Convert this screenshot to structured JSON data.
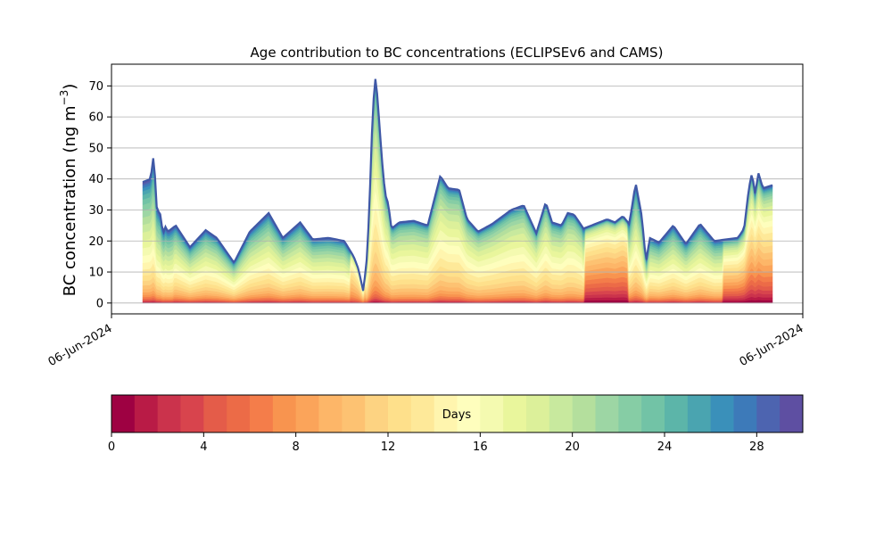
{
  "chart_data": [
    {
      "type": "area",
      "stacked": true,
      "title": "Age contribution to BC concentrations (ECLIPSEv6 and CAMS)",
      "ylabel_main": "BC concentration (ng m",
      "ylabel_exp": "−3",
      "ylabel_close": ")",
      "xlabel": "",
      "ylim": [
        -3.5,
        77
      ],
      "yticks": [
        0,
        10,
        20,
        30,
        40,
        50,
        60,
        70
      ],
      "grid": "horizontal",
      "xticks": [
        "06-Jun-2024",
        "06-Jun-2024"
      ],
      "x_hours": [
        0,
        1,
        2,
        3,
        4,
        5,
        6,
        7,
        8,
        9,
        10,
        11,
        12,
        13,
        14,
        15,
        16,
        17,
        18,
        19,
        20,
        21,
        22,
        23,
        24,
        25,
        26,
        27,
        28,
        29,
        30,
        31,
        32,
        33,
        34,
        35,
        36,
        37,
        38,
        39,
        40,
        41,
        42,
        43,
        44,
        45,
        46,
        47,
        48,
        49,
        50,
        51,
        52,
        53,
        54,
        55,
        56,
        57,
        58,
        59,
        60,
        61,
        62,
        63,
        64,
        65,
        66,
        67,
        68,
        69,
        70,
        71,
        72,
        73,
        74,
        75,
        76,
        77,
        78,
        79,
        80,
        81,
        82,
        83,
        84,
        85,
        86,
        87,
        88,
        89,
        90,
        91,
        92,
        93,
        94,
        95,
        96,
        97,
        98,
        99,
        100,
        101,
        102,
        103,
        104,
        105,
        106,
        107,
        108,
        109,
        110,
        111,
        112,
        113,
        114,
        115,
        116,
        117,
        118,
        119,
        120,
        121,
        122,
        123,
        124,
        125,
        126,
        127,
        128,
        129,
        130,
        131,
        132,
        133,
        134,
        135,
        136,
        137,
        138,
        139,
        140,
        141,
        142,
        143,
        144,
        145,
        146,
        147,
        148,
        149,
        150,
        151,
        152,
        153,
        154,
        155,
        156,
        157,
        158,
        159,
        160,
        161,
        162,
        163,
        164,
        165,
        166,
        167,
        168,
        169,
        170,
        171,
        172,
        173,
        174,
        175,
        176,
        177,
        178,
        179,
        180,
        181,
        182,
        183,
        184,
        185,
        186,
        187,
        188,
        189,
        190,
        191,
        192,
        193,
        194,
        195,
        196,
        197,
        198,
        199,
        200,
        201,
        202,
        203,
        204,
        205,
        206,
        207,
        208,
        209,
        210,
        211,
        212,
        213,
        214,
        215,
        216,
        217,
        218,
        219,
        220,
        221,
        222,
        223,
        224,
        225,
        226,
        227,
        228,
        229,
        230,
        231,
        232,
        233,
        234,
        235,
        236,
        237,
        238,
        239,
        240,
        241,
        242,
        243,
        244,
        245,
        246,
        247,
        248,
        249,
        250,
        251,
        252,
        253,
        254,
        255,
        256,
        257,
        258,
        259,
        260,
        261,
        262,
        263,
        264,
        265,
        266,
        267,
        268,
        269,
        270,
        271,
        272,
        273,
        274,
        275,
        276,
        277,
        278,
        279,
        280,
        281,
        282,
        283,
        284,
        285,
        286,
        287,
        288,
        289,
        290,
        291,
        292,
        293,
        294,
        295,
        296,
        297,
        298,
        299,
        300,
        301,
        302,
        303,
        304,
        305,
        306,
        307,
        308,
        309,
        310,
        311,
        312,
        313,
        314,
        315,
        316,
        317,
        318,
        319,
        320,
        321,
        322,
        323,
        324,
        325,
        326,
        327,
        328,
        329,
        330,
        331,
        332,
        333,
        334,
        335,
        336,
        337,
        338,
        339,
        340,
        341,
        342,
        343,
        344,
        345,
        346,
        347,
        348,
        349,
        350,
        351,
        352,
        353,
        354,
        355,
        356,
        357,
        358,
        359,
        360
      ],
      "total_nodes": [
        [
          0,
          39
        ],
        [
          5,
          40
        ],
        [
          7,
          48
        ],
        [
          9,
          30
        ],
        [
          11,
          29
        ],
        [
          13,
          22
        ],
        [
          14,
          25
        ],
        [
          16,
          23
        ],
        [
          21,
          25
        ],
        [
          30,
          18
        ],
        [
          40,
          23.5
        ],
        [
          47,
          21
        ],
        [
          58,
          13
        ],
        [
          68,
          23
        ],
        [
          80,
          29
        ],
        [
          89,
          21
        ],
        [
          100,
          26
        ],
        [
          108,
          20.5
        ],
        [
          118,
          21
        ],
        [
          128,
          20
        ],
        [
          134,
          15
        ],
        [
          137,
          11
        ],
        [
          140,
          4
        ],
        [
          142,
          12
        ],
        [
          143,
          20
        ],
        [
          145,
          45
        ],
        [
          146,
          62
        ],
        [
          148,
          73.5
        ],
        [
          150,
          60
        ],
        [
          152,
          46
        ],
        [
          154,
          35
        ],
        [
          156,
          32
        ],
        [
          158,
          24
        ],
        [
          163,
          26
        ],
        [
          172,
          26.5
        ],
        [
          181,
          25
        ],
        [
          189,
          41
        ],
        [
          194,
          37
        ],
        [
          201,
          36.5
        ],
        [
          206,
          27
        ],
        [
          213,
          23
        ],
        [
          222,
          25.5
        ],
        [
          234,
          30
        ],
        [
          242,
          31.5
        ],
        [
          250,
          22.5
        ],
        [
          256,
          32.5
        ],
        [
          260,
          26
        ],
        [
          266,
          25
        ],
        [
          270,
          29
        ],
        [
          274,
          28.5
        ],
        [
          280,
          24
        ],
        [
          295,
          27
        ],
        [
          300,
          26
        ],
        [
          305,
          28
        ],
        [
          309,
          25.5
        ],
        [
          312,
          35
        ],
        [
          313,
          39
        ],
        [
          317,
          28
        ],
        [
          319,
          17
        ],
        [
          320,
          14
        ],
        [
          322,
          21
        ],
        [
          328,
          19.5
        ],
        [
          337,
          25
        ],
        [
          345,
          19
        ],
        [
          354,
          25.5
        ],
        [
          363,
          20
        ],
        [
          378,
          21
        ],
        [
          382,
          24
        ],
        [
          385,
          37
        ],
        [
          387,
          42
        ],
        [
          389,
          35
        ],
        [
          391,
          42
        ],
        [
          394,
          37
        ],
        [
          400,
          38
        ]
      ],
      "x_nodes_note": "hours after start",
      "colorbar": {
        "label": "Days",
        "min": 0,
        "max": 30,
        "ticks": [
          0,
          4,
          8,
          12,
          16,
          20,
          24,
          28
        ],
        "colors": [
          "#9e0142",
          "#b91b46",
          "#cb334c",
          "#d8444d",
          "#e45c49",
          "#ec6b47",
          "#f47d4a",
          "#f8944f",
          "#fba45a",
          "#fdb668",
          "#fdc272",
          "#fdd382",
          "#fee08b",
          "#fee999",
          "#fff5ae",
          "#fefebd",
          "#f4fab0",
          "#e9f69c",
          "#dcf09a",
          "#c8e99e",
          "#b4df9d",
          "#9dd6a4",
          "#86cda5",
          "#72c3a6",
          "#5cb5a9",
          "#4aa4b0",
          "#3a90ba",
          "#3d7ab9",
          "#4d64b0",
          "#5e4fa2"
        ]
      }
    }
  ]
}
